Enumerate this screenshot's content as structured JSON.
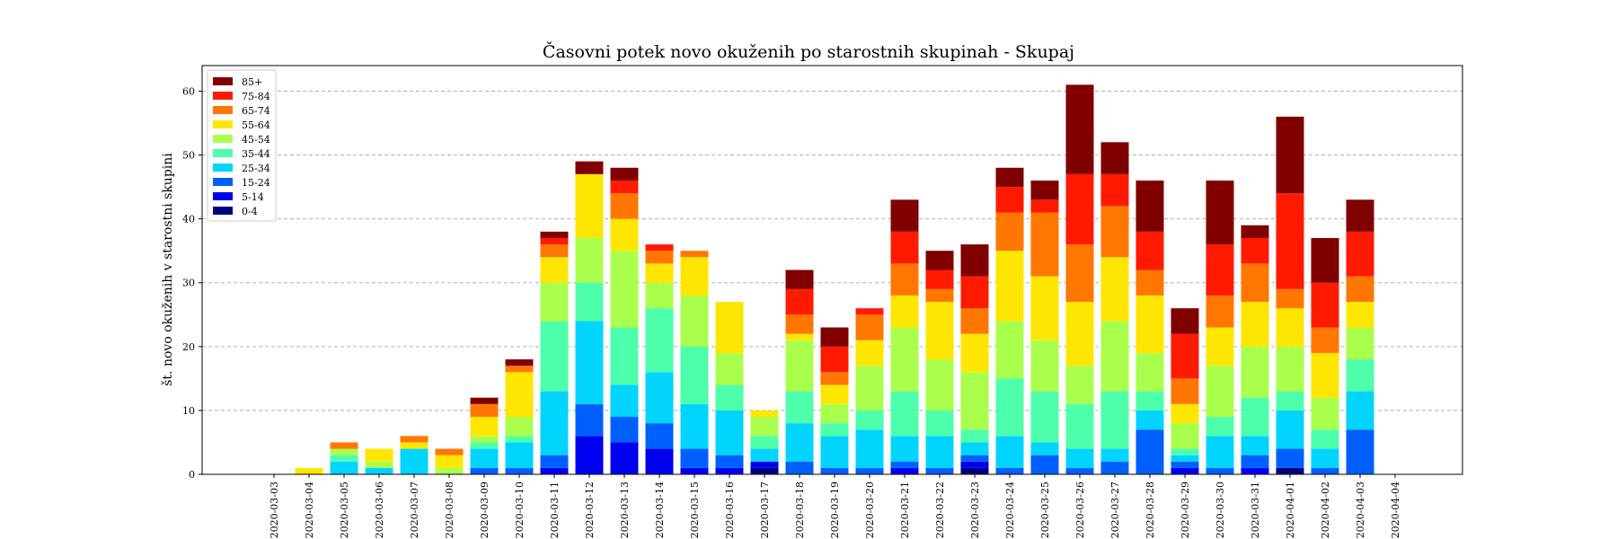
{
  "chart_data": {
    "type": "bar",
    "stacked": true,
    "title": "Časovni potek novo okuženih po starostnih skupinah - Skupaj",
    "xlabel": "",
    "ylabel": "št. novo okuženih v starostni skupini",
    "ylim": [
      0,
      64
    ],
    "yticks": [
      0,
      10,
      20,
      30,
      40,
      50,
      60
    ],
    "grid": "y-dashed",
    "legend_position": "top-left",
    "categories": [
      "2020-03-03",
      "2020-03-04",
      "2020-03-05",
      "2020-03-06",
      "2020-03-07",
      "2020-03-08",
      "2020-03-09",
      "2020-03-10",
      "2020-03-11",
      "2020-03-12",
      "2020-03-13",
      "2020-03-14",
      "2020-03-15",
      "2020-03-16",
      "2020-03-17",
      "2020-03-18",
      "2020-03-19",
      "2020-03-20",
      "2020-03-21",
      "2020-03-22",
      "2020-03-23",
      "2020-03-24",
      "2020-03-25",
      "2020-03-26",
      "2020-03-27",
      "2020-03-28",
      "2020-03-29",
      "2020-03-30",
      "2020-03-31",
      "2020-04-01",
      "2020-04-02",
      "2020-04-03",
      "2020-04-04"
    ],
    "series": [
      {
        "name": "0-4",
        "color": "#000080",
        "values": [
          0,
          0,
          0,
          0,
          0,
          0,
          0,
          0,
          0,
          0,
          0,
          0,
          0,
          0,
          1,
          0,
          0,
          0,
          0,
          0,
          1,
          0,
          0,
          0,
          0,
          0,
          0,
          0,
          0,
          1,
          0,
          0,
          0
        ]
      },
      {
        "name": "5-14",
        "color": "#0000f1",
        "values": [
          0,
          0,
          0,
          0,
          0,
          0,
          0,
          0,
          1,
          6,
          5,
          4,
          1,
          1,
          1,
          0,
          0,
          0,
          1,
          0,
          1,
          0,
          0,
          0,
          0,
          0,
          1,
          0,
          1,
          0,
          0,
          0,
          0
        ]
      },
      {
        "name": "15-24",
        "color": "#0060ff",
        "values": [
          0,
          0,
          0,
          0,
          0,
          0,
          1,
          1,
          2,
          5,
          4,
          4,
          3,
          2,
          0,
          2,
          1,
          1,
          1,
          1,
          1,
          1,
          3,
          1,
          2,
          7,
          1,
          1,
          2,
          3,
          1,
          7,
          0
        ]
      },
      {
        "name": "25-34",
        "color": "#00d4ff",
        "values": [
          0,
          0,
          2,
          1,
          4,
          0,
          3,
          4,
          10,
          13,
          5,
          8,
          7,
          7,
          2,
          6,
          5,
          6,
          4,
          5,
          2,
          5,
          2,
          3,
          2,
          3,
          1,
          5,
          3,
          6,
          3,
          6,
          0
        ]
      },
      {
        "name": "35-44",
        "color": "#4dffaa",
        "values": [
          0,
          0,
          1,
          0,
          0,
          0,
          1,
          1,
          11,
          6,
          9,
          10,
          9,
          4,
          2,
          5,
          2,
          3,
          7,
          4,
          2,
          9,
          8,
          7,
          9,
          3,
          1,
          3,
          6,
          3,
          3,
          5,
          0
        ]
      },
      {
        "name": "45-54",
        "color": "#aaff4d",
        "values": [
          0,
          0,
          1,
          1,
          0,
          1,
          1,
          3,
          6,
          7,
          12,
          4,
          8,
          5,
          3,
          8,
          3,
          7,
          10,
          8,
          9,
          9,
          8,
          6,
          11,
          6,
          4,
          8,
          8,
          7,
          5,
          5,
          0
        ]
      },
      {
        "name": "55-64",
        "color": "#ffe600",
        "values": [
          0,
          1,
          0,
          2,
          1,
          2,
          3,
          7,
          4,
          10,
          5,
          3,
          6,
          8,
          1,
          1,
          3,
          4,
          5,
          9,
          6,
          11,
          10,
          10,
          10,
          9,
          3,
          6,
          7,
          6,
          7,
          4,
          0
        ]
      },
      {
        "name": "65-74",
        "color": "#ff7700",
        "values": [
          0,
          0,
          1,
          0,
          1,
          1,
          2,
          1,
          2,
          0,
          4,
          2,
          1,
          0,
          0,
          3,
          2,
          4,
          5,
          2,
          4,
          6,
          10,
          9,
          8,
          4,
          4,
          5,
          6,
          3,
          4,
          4,
          0
        ]
      },
      {
        "name": "75-84",
        "color": "#ff1a00",
        "values": [
          0,
          0,
          0,
          0,
          0,
          0,
          0,
          0,
          1,
          0,
          2,
          1,
          0,
          0,
          0,
          4,
          4,
          1,
          5,
          3,
          5,
          4,
          2,
          11,
          5,
          6,
          7,
          8,
          4,
          15,
          7,
          7,
          0
        ]
      },
      {
        "name": "85+",
        "color": "#800000",
        "values": [
          0,
          0,
          0,
          0,
          0,
          0,
          1,
          1,
          1,
          2,
          2,
          0,
          0,
          0,
          0,
          3,
          3,
          0,
          5,
          3,
          5,
          3,
          3,
          14,
          5,
          8,
          4,
          10,
          2,
          12,
          7,
          5,
          0
        ]
      }
    ]
  }
}
